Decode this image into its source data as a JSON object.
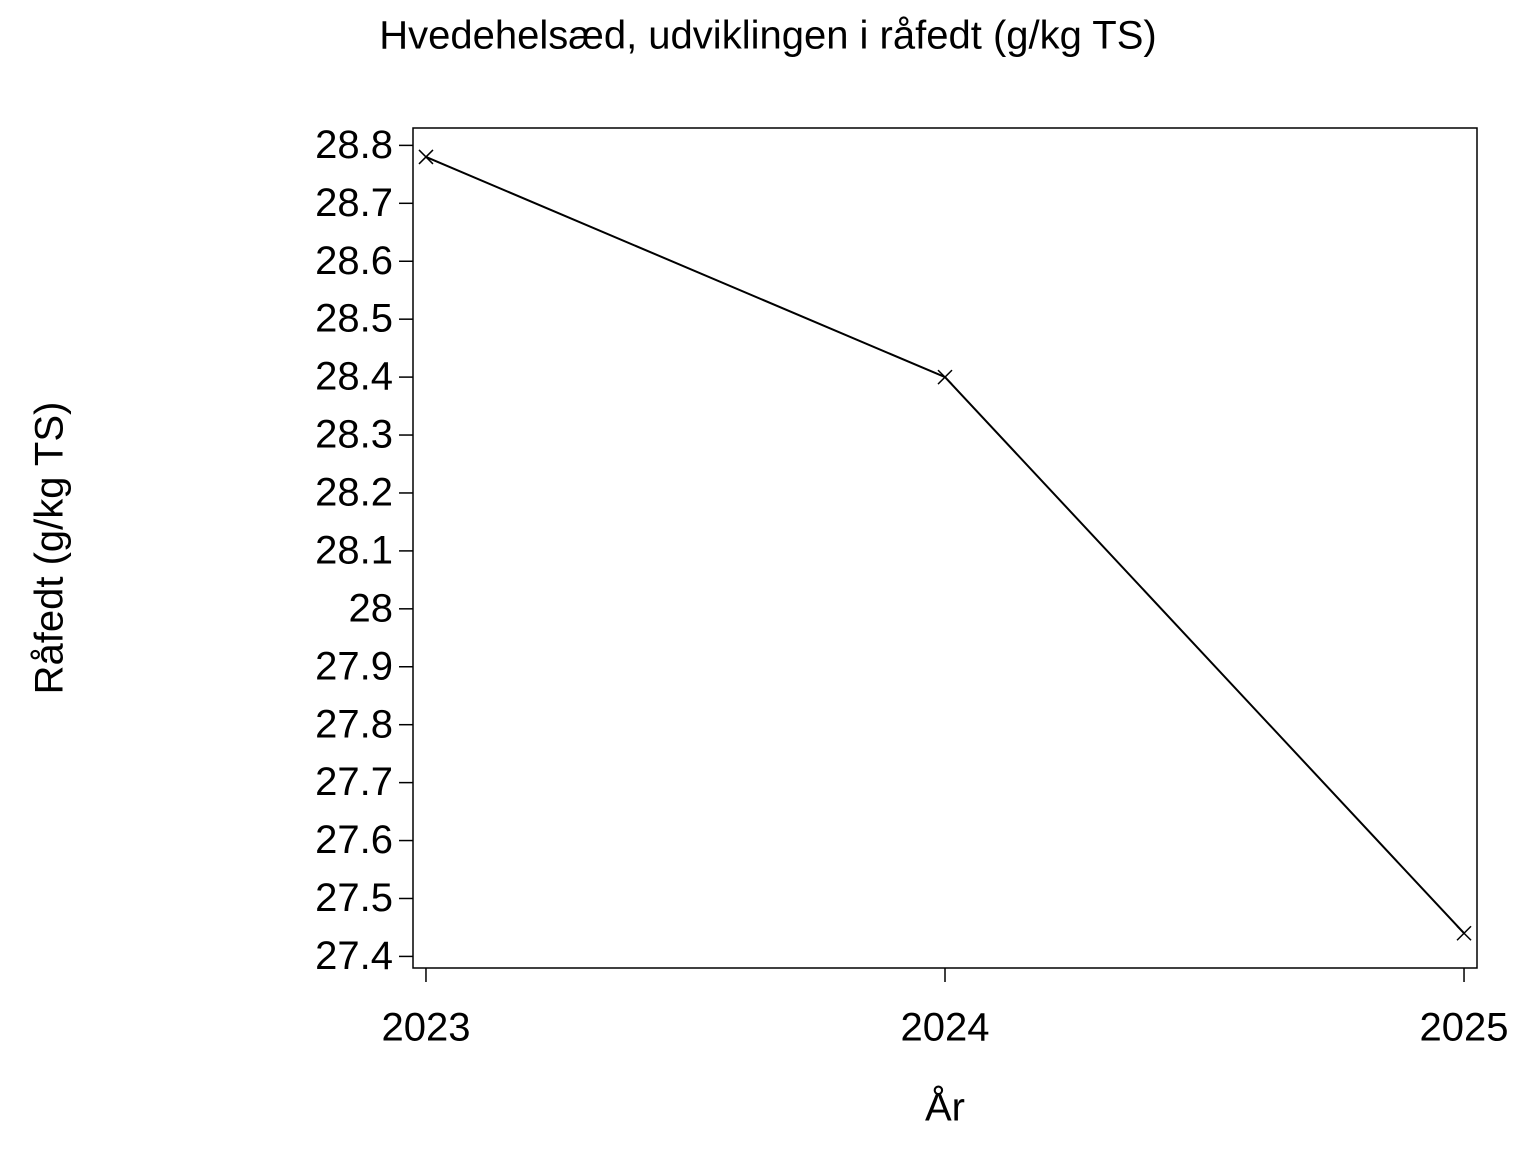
{
  "chart_data": {
    "type": "line",
    "title": "Hvedehelsæd, udviklingen i råfedt (g/kg TS)",
    "x_label": "År",
    "y_label": "Råfedt (g/kg TS)",
    "x": [
      2023,
      2024,
      2025
    ],
    "series": [
      {
        "name": "Råfedt",
        "color": "#000000",
        "values": [
          28.78,
          28.4,
          27.44
        ]
      }
    ],
    "xlim": [
      2022.975,
      2025.025
    ],
    "xticks": [
      2023,
      2024,
      2025
    ],
    "ylim": [
      27.38,
      28.83
    ],
    "yticks": [
      27.4,
      27.5,
      27.6,
      27.7,
      27.8,
      27.9,
      28,
      28.1,
      28.2,
      28.3,
      28.4,
      28.5,
      28.6,
      28.7,
      28.8
    ],
    "grid": false
  }
}
